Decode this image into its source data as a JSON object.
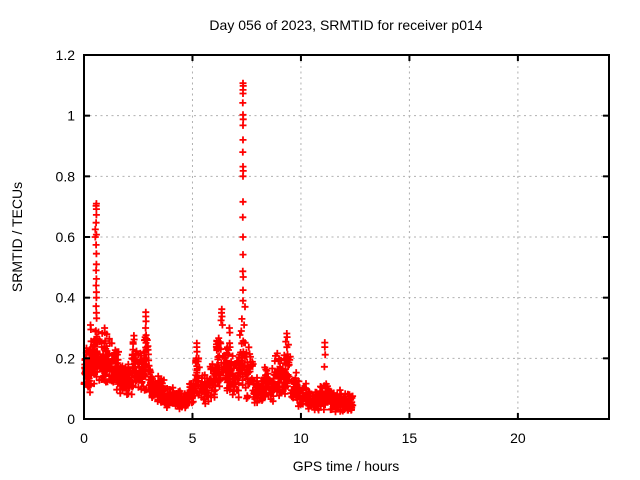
{
  "window": {
    "background": "#ffffff"
  },
  "chart_data": {
    "type": "scatter",
    "title": "Day 056 of 2023, SRMTID for receiver p014",
    "xlabel": "GPS time / hours",
    "ylabel": "SRMTID / TECUs",
    "xlim": [
      0,
      24.2
    ],
    "ylim": [
      0,
      1.2
    ],
    "xticks": [
      0,
      5,
      10,
      15,
      20
    ],
    "yticks": [
      0,
      0.2,
      0.4,
      0.6,
      0.8,
      1,
      1.2
    ],
    "grid": true,
    "grid_style": "dashed",
    "legend": "none",
    "marker": {
      "shape": "plus",
      "color": "#ff0000",
      "size": 7,
      "stroke_width": 1.8
    },
    "grid_color": "#b0b0b0",
    "border_color": "#000000",
    "x_data_range": [
      0,
      12.4
    ],
    "notes": "Dense 1-day SRMTID scatter; data only 0-12.4 h; large spike to 1.11 TECUs at ~7.3 h; secondary spike to 0.71 at ~0.57 h",
    "points": [
      [
        0.57,
        0.71
      ],
      [
        0.56,
        0.703
      ],
      [
        0.57,
        0.692
      ],
      [
        0.57,
        0.673
      ],
      [
        0.56,
        0.647
      ],
      [
        0.52,
        0.625
      ],
      [
        0.57,
        0.608
      ],
      [
        0.52,
        0.6
      ],
      [
        0.56,
        0.574
      ],
      [
        0.57,
        0.545
      ],
      [
        0.57,
        0.51
      ],
      [
        0.56,
        0.49
      ],
      [
        0.57,
        0.462
      ],
      [
        0.56,
        0.44
      ],
      [
        0.57,
        0.418
      ],
      [
        0.57,
        0.4
      ],
      [
        0.56,
        0.372
      ],
      [
        0.57,
        0.35
      ],
      [
        0.58,
        0.332
      ],
      [
        7.33,
        1.107
      ],
      [
        7.34,
        1.098
      ],
      [
        7.33,
        1.085
      ],
      [
        7.33,
        1.073
      ],
      [
        7.32,
        1.042
      ],
      [
        7.33,
        1.003
      ],
      [
        7.34,
        0.988
      ],
      [
        7.33,
        0.968
      ],
      [
        7.33,
        0.92
      ],
      [
        7.32,
        0.88
      ],
      [
        7.33,
        0.832
      ],
      [
        7.34,
        0.818
      ],
      [
        7.33,
        0.8
      ],
      [
        7.33,
        0.716
      ],
      [
        7.32,
        0.665
      ],
      [
        7.33,
        0.6
      ],
      [
        7.33,
        0.542
      ],
      [
        7.32,
        0.487
      ],
      [
        7.34,
        0.468
      ],
      [
        7.33,
        0.425
      ],
      [
        7.33,
        0.39
      ],
      [
        7.28,
        0.33
      ],
      [
        7.38,
        0.31
      ],
      [
        7.42,
        0.37
      ],
      [
        7.25,
        0.29
      ],
      [
        2.85,
        0.352
      ],
      [
        2.85,
        0.338
      ],
      [
        2.86,
        0.322
      ],
      [
        2.84,
        0.3
      ],
      [
        2.82,
        0.27
      ],
      [
        5.2,
        0.25
      ],
      [
        5.2,
        0.237
      ],
      [
        5.21,
        0.222
      ],
      [
        5.18,
        0.2
      ],
      [
        6.35,
        0.362
      ],
      [
        6.34,
        0.35
      ],
      [
        6.36,
        0.338
      ],
      [
        6.32,
        0.325
      ],
      [
        6.38,
        0.31
      ],
      [
        9.35,
        0.282
      ],
      [
        9.36,
        0.27
      ],
      [
        9.3,
        0.255
      ],
      [
        9.42,
        0.245
      ],
      [
        11.1,
        0.252
      ],
      [
        11.1,
        0.237
      ],
      [
        11.12,
        0.212
      ],
      [
        11.08,
        0.172
      ],
      [
        2.3,
        0.275
      ],
      [
        2.31,
        0.262
      ],
      [
        2.27,
        0.248
      ],
      [
        0.95,
        0.3
      ],
      [
        0.96,
        0.285
      ],
      [
        1.05,
        0.28
      ],
      [
        6.7,
        0.3
      ],
      [
        6.72,
        0.285
      ],
      [
        0.3,
        0.31
      ],
      [
        0.32,
        0.295
      ]
    ],
    "density_bands": [
      {
        "x0": 0.0,
        "x1": 0.3,
        "ymin": 0.08,
        "ymax": 0.26,
        "n": 55
      },
      {
        "x0": 0.3,
        "x1": 0.5,
        "ymin": 0.1,
        "ymax": 0.3,
        "n": 35
      },
      {
        "x0": 0.5,
        "x1": 0.7,
        "ymin": 0.12,
        "ymax": 0.32,
        "n": 30
      },
      {
        "x0": 0.7,
        "x1": 1.0,
        "ymin": 0.1,
        "ymax": 0.3,
        "n": 45
      },
      {
        "x0": 1.0,
        "x1": 1.3,
        "ymin": 0.1,
        "ymax": 0.27,
        "n": 45
      },
      {
        "x0": 1.3,
        "x1": 1.6,
        "ymin": 0.08,
        "ymax": 0.24,
        "n": 45
      },
      {
        "x0": 1.6,
        "x1": 1.95,
        "ymin": 0.08,
        "ymax": 0.2,
        "n": 50
      },
      {
        "x0": 1.95,
        "x1": 2.2,
        "ymin": 0.07,
        "ymax": 0.19,
        "n": 35
      },
      {
        "x0": 2.2,
        "x1": 2.5,
        "ymin": 0.09,
        "ymax": 0.26,
        "n": 40
      },
      {
        "x0": 2.5,
        "x1": 2.75,
        "ymin": 0.08,
        "ymax": 0.22,
        "n": 32
      },
      {
        "x0": 2.75,
        "x1": 3.0,
        "ymin": 0.09,
        "ymax": 0.3,
        "n": 38
      },
      {
        "x0": 3.0,
        "x1": 3.35,
        "ymin": 0.06,
        "ymax": 0.18,
        "n": 45
      },
      {
        "x0": 3.35,
        "x1": 3.75,
        "ymin": 0.04,
        "ymax": 0.15,
        "n": 48
      },
      {
        "x0": 3.75,
        "x1": 4.3,
        "ymin": 0.03,
        "ymax": 0.11,
        "n": 55
      },
      {
        "x0": 4.3,
        "x1": 4.85,
        "ymin": 0.03,
        "ymax": 0.1,
        "n": 50
      },
      {
        "x0": 4.85,
        "x1": 5.12,
        "ymin": 0.04,
        "ymax": 0.13,
        "n": 28
      },
      {
        "x0": 5.12,
        "x1": 5.35,
        "ymin": 0.06,
        "ymax": 0.22,
        "n": 25
      },
      {
        "x0": 5.35,
        "x1": 5.8,
        "ymin": 0.04,
        "ymax": 0.16,
        "n": 45
      },
      {
        "x0": 5.8,
        "x1": 6.1,
        "ymin": 0.06,
        "ymax": 0.2,
        "n": 32
      },
      {
        "x0": 6.1,
        "x1": 6.5,
        "ymin": 0.09,
        "ymax": 0.3,
        "n": 42
      },
      {
        "x0": 6.5,
        "x1": 6.85,
        "ymin": 0.08,
        "ymax": 0.27,
        "n": 38
      },
      {
        "x0": 6.85,
        "x1": 7.15,
        "ymin": 0.06,
        "ymax": 0.22,
        "n": 35
      },
      {
        "x0": 7.15,
        "x1": 7.45,
        "ymin": 0.08,
        "ymax": 0.3,
        "n": 32
      },
      {
        "x0": 7.45,
        "x1": 7.8,
        "ymin": 0.06,
        "ymax": 0.24,
        "n": 38
      },
      {
        "x0": 7.8,
        "x1": 8.3,
        "ymin": 0.04,
        "ymax": 0.15,
        "n": 52
      },
      {
        "x0": 8.3,
        "x1": 8.75,
        "ymin": 0.05,
        "ymax": 0.18,
        "n": 42
      },
      {
        "x0": 8.75,
        "x1": 9.15,
        "ymin": 0.07,
        "ymax": 0.23,
        "n": 40
      },
      {
        "x0": 9.15,
        "x1": 9.55,
        "ymin": 0.06,
        "ymax": 0.25,
        "n": 40
      },
      {
        "x0": 9.55,
        "x1": 9.95,
        "ymin": 0.04,
        "ymax": 0.16,
        "n": 38
      },
      {
        "x0": 9.95,
        "x1": 10.3,
        "ymin": 0.03,
        "ymax": 0.12,
        "n": 36
      },
      {
        "x0": 10.3,
        "x1": 10.85,
        "ymin": 0.02,
        "ymax": 0.1,
        "n": 58
      },
      {
        "x0": 10.85,
        "x1": 11.35,
        "ymin": 0.03,
        "ymax": 0.12,
        "n": 52
      },
      {
        "x0": 11.35,
        "x1": 11.95,
        "ymin": 0.02,
        "ymax": 0.1,
        "n": 62
      },
      {
        "x0": 11.95,
        "x1": 12.4,
        "ymin": 0.02,
        "ymax": 0.09,
        "n": 52
      }
    ]
  }
}
